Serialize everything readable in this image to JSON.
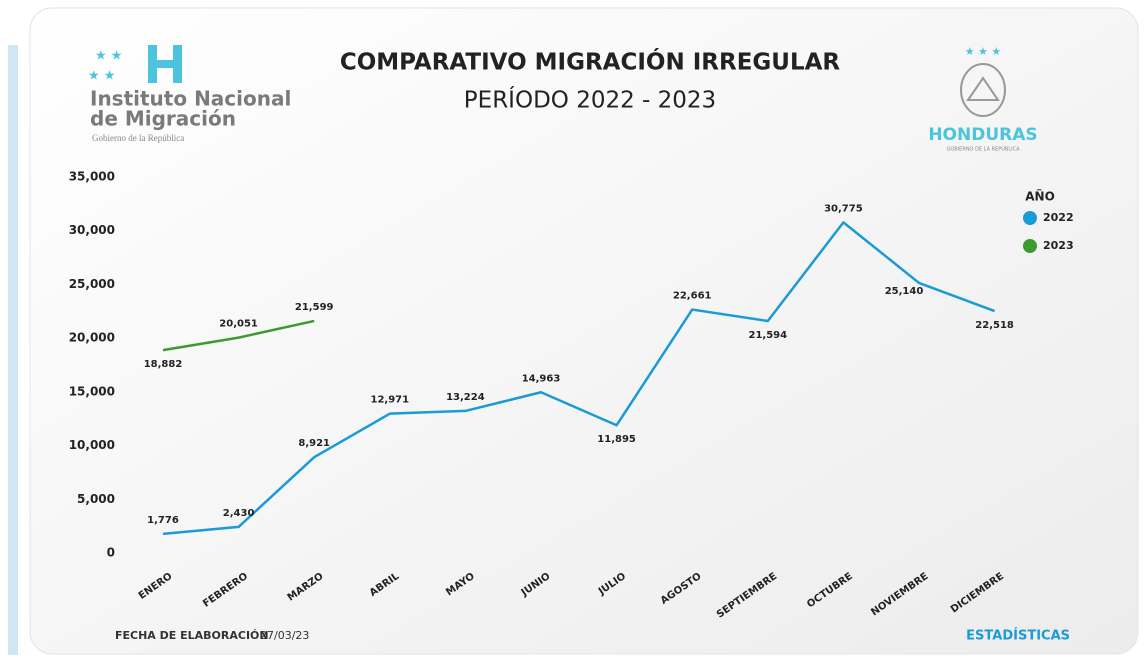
{
  "header": {
    "org_name_1": "Instituto Nacional",
    "org_name_2": "de Migración",
    "org_sub": "Gobierno de la República",
    "country": "HONDURAS",
    "country_sub": "GOBIERNO DE LA REPÚBLICA"
  },
  "chart_data": {
    "type": "line",
    "title": "COMPARATIVO MIGRACIÓN IRREGULAR",
    "subtitle": "PERÍODO 2022 - 2023",
    "categories": [
      "ENERO",
      "FEBRERO",
      "MARZO",
      "ABRIL",
      "MAYO",
      "JUNIO",
      "JULIO",
      "AGOSTO",
      "SEPTIEMBRE",
      "OCTUBRE",
      "NOVIEMBRE",
      "DICIEMBRE"
    ],
    "series": [
      {
        "name": "2022",
        "color": "#1a9ad6",
        "values": [
          1776,
          2430,
          8921,
          12971,
          13224,
          14963,
          11895,
          22661,
          21594,
          30775,
          25140,
          22518
        ],
        "value_labels": [
          "1,776",
          "2,430",
          "8,921",
          "12,971",
          "13,224",
          "14,963",
          "11,895",
          "22,661",
          "21,594",
          "30,775",
          "25,140",
          "22,518"
        ]
      },
      {
        "name": "2023",
        "color": "#3c9a2e",
        "values": [
          18882,
          20051,
          21599,
          null,
          null,
          null,
          null,
          null,
          null,
          null,
          null,
          null
        ],
        "value_labels": [
          "18,882",
          "20,051",
          "21,599",
          null,
          null,
          null,
          null,
          null,
          null,
          null,
          null,
          null
        ]
      }
    ],
    "ylim": [
      0,
      35000
    ],
    "yticks": [
      0,
      {
        "value": 5000,
        "label": "5,000"
      },
      {
        "value": 10000,
        "label": "10,000"
      },
      {
        "value": 15000,
        "label": "15,000"
      },
      {
        "value": 20000,
        "label": "20,000"
      },
      {
        "value": 25000,
        "label": "25,000"
      },
      {
        "value": 30000,
        "label": "30,000"
      },
      {
        "value": 35000,
        "label": "35,000"
      }
    ],
    "grid": false,
    "legend_title": "AÑO",
    "legend_position": "upper right",
    "footer_label": "FECHA DE ELABORACIÓN",
    "footer_date": "27/03/23",
    "footer_right": "ESTADÍSTICAS"
  }
}
